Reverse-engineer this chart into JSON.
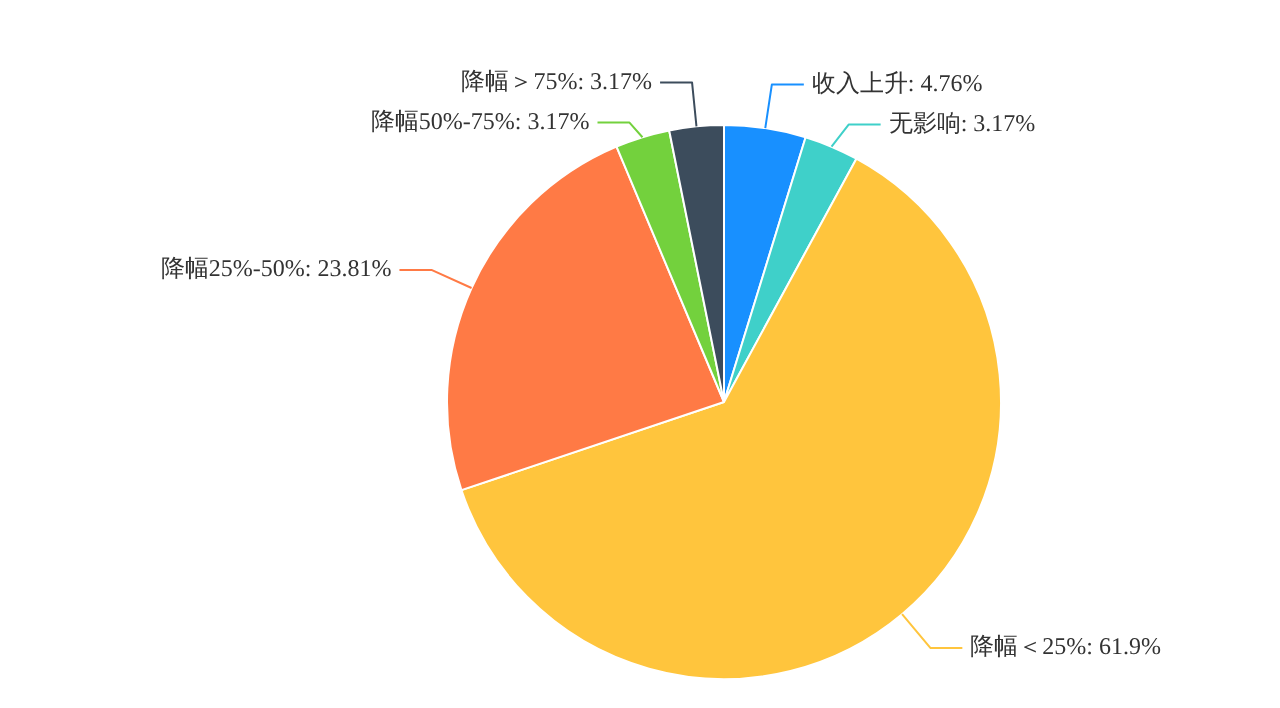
{
  "chart_data": {
    "type": "pie",
    "categories": [
      "收入上升",
      "无影响",
      "降幅＜25%",
      "降幅25%-50%",
      "降幅50%-75%",
      "降幅＞75%"
    ],
    "values": [
      4.76,
      3.17,
      61.9,
      23.81,
      3.17,
      3.17
    ],
    "value_labels": [
      "4.76%",
      "3.17%",
      "61.9%",
      "23.81%",
      "3.17%",
      "3.17%"
    ],
    "colors": [
      "#1890ff",
      "#3fd0c9",
      "#ffc53d",
      "#ff7a45",
      "#73d13d",
      "#3c4c5c"
    ],
    "legend": false
  }
}
